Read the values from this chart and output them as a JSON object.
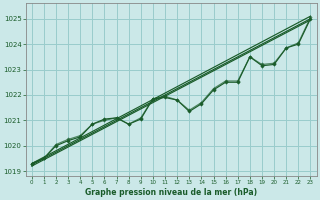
{
  "title": "Graphe pression niveau de la mer (hPa)",
  "bg_color": "#cbe8e8",
  "grid_color": "#99cccc",
  "line_color": "#1a5c2a",
  "xlim": [
    -0.5,
    23.5
  ],
  "ylim": [
    1018.8,
    1025.6
  ],
  "yticks": [
    1019,
    1020,
    1021,
    1022,
    1023,
    1024,
    1025
  ],
  "xticks": [
    0,
    1,
    2,
    3,
    4,
    5,
    6,
    7,
    8,
    9,
    10,
    11,
    12,
    13,
    14,
    15,
    16,
    17,
    18,
    19,
    20,
    21,
    22,
    23
  ],
  "series_main": [
    1019.3,
    1019.5,
    1020.0,
    1020.2,
    1020.35,
    1020.85,
    1021.05,
    1021.1,
    1020.85,
    1021.05,
    1021.85,
    1021.9,
    1021.8,
    1021.35,
    1021.65,
    1022.2,
    1022.5,
    1022.5,
    1023.5,
    1023.15,
    1023.2,
    1023.85,
    1024.0,
    1025.0
  ],
  "series_smooth": [
    1019.3,
    1019.5,
    1020.05,
    1020.25,
    1020.4,
    1020.85,
    1021.0,
    1021.1,
    1020.85,
    1021.1,
    1021.85,
    1021.95,
    1021.8,
    1021.4,
    1021.7,
    1022.25,
    1022.55,
    1022.55,
    1023.5,
    1023.2,
    1023.25,
    1023.85,
    1024.05,
    1025.05
  ],
  "trend1": [
    1019.25,
    1025.0
  ],
  "trend2": [
    1019.3,
    1025.1
  ],
  "trend3": [
    1019.2,
    1024.95
  ]
}
